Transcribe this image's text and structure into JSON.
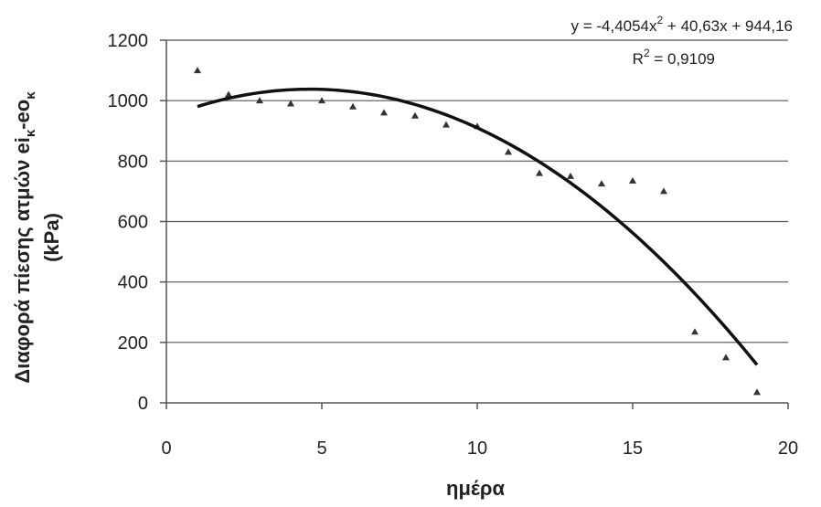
{
  "chart_data": {
    "type": "scatter",
    "xlabel": "ημέρα",
    "ylabel_line1": "Διαφορά πίεσης ατμών ei",
    "ylabel_sub1": "κ",
    "ylabel_mid": "-eo",
    "ylabel_sub2": "κ",
    "ylabel_line2": "(kPa)",
    "xlim": [
      0,
      20
    ],
    "ylim": [
      0,
      1200
    ],
    "x_ticks": [
      "0",
      "5",
      "10",
      "15",
      "20"
    ],
    "y_ticks": [
      "0",
      "200",
      "400",
      "600",
      "800",
      "1000",
      "1200"
    ],
    "x_tick_values": [
      0,
      5,
      10,
      15,
      20
    ],
    "y_tick_values": [
      0,
      200,
      400,
      600,
      800,
      1000,
      1200
    ],
    "horizontal_grid": true,
    "series": [
      {
        "marker": "triangle",
        "x": [
          1,
          2,
          3,
          4,
          5,
          6,
          7,
          8,
          9,
          10,
          11,
          12,
          13,
          14,
          15,
          16,
          17,
          18,
          19
        ],
        "y": [
          1100,
          1020,
          1000,
          990,
          1000,
          980,
          960,
          950,
          920,
          915,
          830,
          760,
          750,
          725,
          735,
          700,
          235,
          150,
          35
        ]
      }
    ],
    "trendline": {
      "type": "polynomial",
      "coefficients": [
        -4.4054,
        40.63,
        944.16
      ],
      "x_range": [
        1,
        19
      ],
      "equation_prefix": "y = -4,4054x",
      "equation_sup": "2",
      "equation_suffix": " + 40,63x + 944,16",
      "r2_prefix": "R",
      "r2_sup": "2",
      "r2_suffix": " = 0,9109"
    },
    "colors": {
      "marker": "#333333",
      "trend": "#111111",
      "grid": "#555555",
      "axis": "#555555"
    }
  }
}
